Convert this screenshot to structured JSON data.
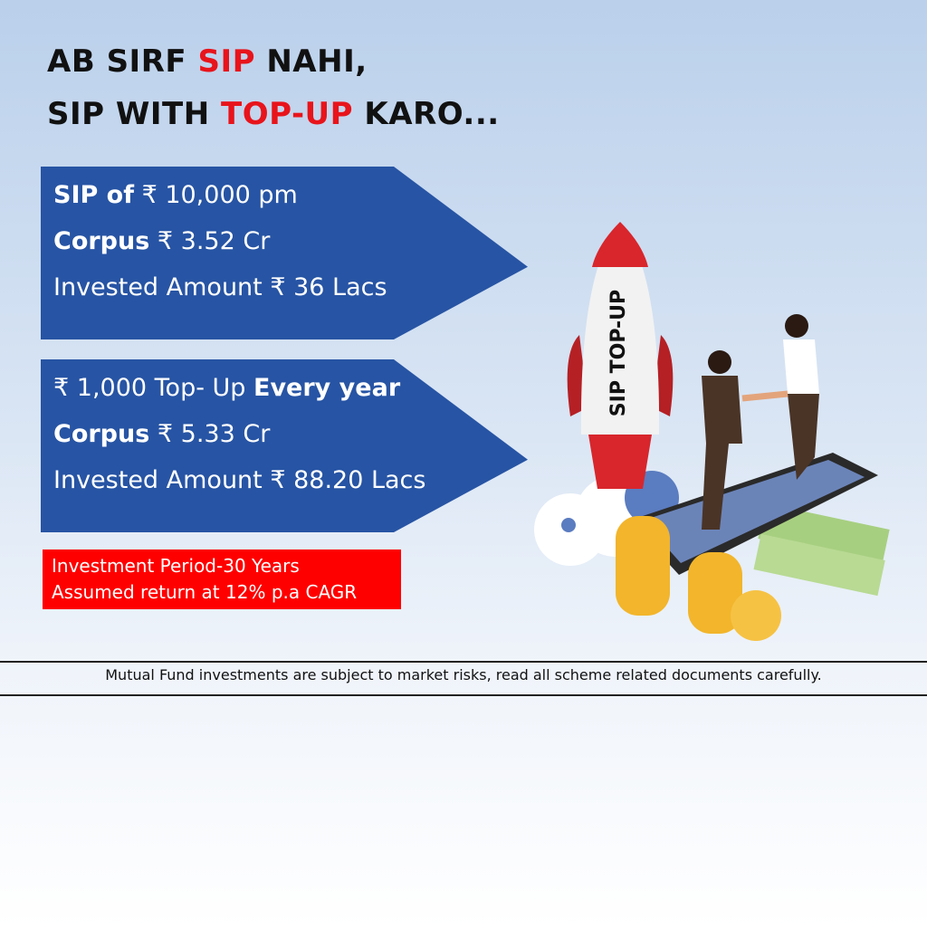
{
  "headline": {
    "line1": {
      "a": "AB SIRF ",
      "b": "SIP",
      "c": " NAHI,"
    },
    "line2": {
      "a": "SIP WITH ",
      "b": "TOP-UP",
      "c": " KARO..."
    }
  },
  "card1": {
    "l1_bold": "SIP of",
    "l1": " ₹ 10,000 pm",
    "l2_bold": "Corpus",
    "l2": " ₹ 3.52 Cr",
    "l3": "Invested Amount ₹ 36 Lacs"
  },
  "card2": {
    "l1": "₹ 1,000 Top- Up ",
    "l1_bold": "Every year",
    "l2_bold": "Corpus",
    "l2": " ₹ 5.33 Cr",
    "l3": "Invested Amount ₹ 88.20 Lacs"
  },
  "assumptions": {
    "period": "Investment Period-30 Years",
    "return": "Assumed return at 12% p.a CAGR"
  },
  "rocket_label": "SIP TOP-UP",
  "disclaimer": "Mutual Fund investments are subject to market risks, read all scheme related documents carefully.",
  "colors": {
    "accent_red": "#fe0000",
    "card_blue": "#2754a4"
  }
}
